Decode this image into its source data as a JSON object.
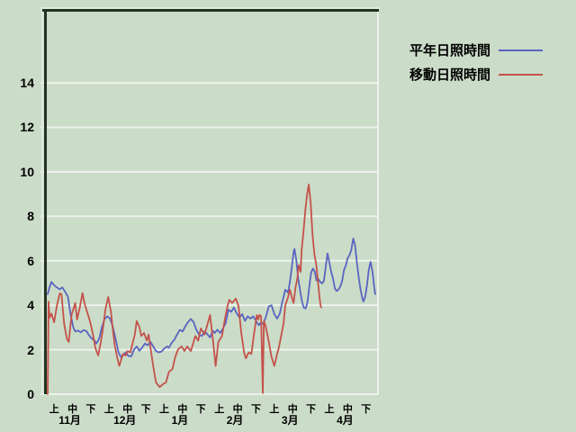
{
  "colors": {
    "background": "#cbdcc8",
    "grid": "#edf3ec",
    "border_dark": "#233323",
    "border_light": "#dfeadc",
    "text": "#000000"
  },
  "legend": {
    "items": [
      {
        "label": "平年日照時間",
        "color": "#5a64c1"
      },
      {
        "label": "移動日照時間",
        "color": "#c4524a"
      }
    ]
  },
  "chart_data": {
    "type": "line",
    "title": "",
    "xlabel": "",
    "ylabel": "",
    "grid": true,
    "legend_position": "outside-top-right",
    "x_axis": {
      "months": [
        "11月",
        "12月",
        "1月",
        "2月",
        "3月",
        "4月"
      ],
      "period_labels": [
        "上",
        "中",
        "下"
      ],
      "days_total": 180
    },
    "y_axis": {
      "ticks": [
        0,
        2,
        4,
        6,
        8,
        10,
        12,
        14
      ],
      "range_drawn": [
        0,
        17.2
      ]
    },
    "series": [
      {
        "name": "平年日照時間",
        "color": "#5a64c1",
        "points": [
          [
            0,
            4.5
          ],
          [
            1,
            4.8
          ],
          [
            2,
            5.05
          ],
          [
            3.5,
            4.9
          ],
          [
            5,
            4.8
          ],
          [
            6.5,
            4.72
          ],
          [
            8,
            4.8
          ],
          [
            9.5,
            4.6
          ],
          [
            11,
            4.4
          ],
          [
            12.5,
            3.56
          ],
          [
            14,
            3.0
          ],
          [
            15,
            2.82
          ],
          [
            16.5,
            2.86
          ],
          [
            18,
            2.78
          ],
          [
            19.5,
            2.88
          ],
          [
            21,
            2.85
          ],
          [
            22.5,
            2.65
          ],
          [
            24,
            2.5
          ],
          [
            25.5,
            2.42
          ],
          [
            26.5,
            2.28
          ],
          [
            28,
            2.48
          ],
          [
            29.5,
            3.0
          ],
          [
            31,
            3.38
          ],
          [
            32.5,
            3.5
          ],
          [
            34,
            3.4
          ],
          [
            35.5,
            3.02
          ],
          [
            37,
            2.5
          ],
          [
            38.5,
            1.9
          ],
          [
            40,
            1.65
          ],
          [
            41,
            1.74
          ],
          [
            42.5,
            1.88
          ],
          [
            44,
            1.72
          ],
          [
            45.5,
            1.7
          ],
          [
            47,
            2.0
          ],
          [
            48.5,
            2.15
          ],
          [
            50,
            1.95
          ],
          [
            51.5,
            2.1
          ],
          [
            53,
            2.28
          ],
          [
            54.5,
            2.2
          ],
          [
            56,
            2.35
          ],
          [
            57.5,
            2.15
          ],
          [
            59,
            1.94
          ],
          [
            60.5,
            1.88
          ],
          [
            62,
            1.92
          ],
          [
            63.5,
            2.05
          ],
          [
            65,
            2.15
          ],
          [
            66,
            2.08
          ],
          [
            67.5,
            2.3
          ],
          [
            69,
            2.45
          ],
          [
            70.5,
            2.68
          ],
          [
            72,
            2.89
          ],
          [
            73.5,
            2.82
          ],
          [
            75,
            3.05
          ],
          [
            76.5,
            3.25
          ],
          [
            78,
            3.38
          ],
          [
            79.5,
            3.25
          ],
          [
            81,
            2.9
          ],
          [
            82.5,
            2.68
          ],
          [
            84,
            2.62
          ],
          [
            85.5,
            2.82
          ],
          [
            87,
            2.7
          ],
          [
            88.5,
            2.55
          ],
          [
            90,
            2.85
          ],
          [
            91,
            2.75
          ],
          [
            92.5,
            2.9
          ],
          [
            94,
            2.75
          ],
          [
            95.5,
            2.95
          ],
          [
            97,
            3.2
          ],
          [
            98.5,
            3.8
          ],
          [
            100,
            3.7
          ],
          [
            101.5,
            3.9
          ],
          [
            103,
            3.63
          ],
          [
            104.5,
            3.45
          ],
          [
            106,
            3.6
          ],
          [
            107.5,
            3.3
          ],
          [
            109,
            3.5
          ],
          [
            110.5,
            3.4
          ],
          [
            112,
            3.5
          ],
          [
            113.5,
            3.3
          ],
          [
            115,
            3.1
          ],
          [
            116,
            3.2
          ],
          [
            117.5,
            3.16
          ],
          [
            119,
            3.5
          ],
          [
            120.5,
            3.95
          ],
          [
            122,
            4.0
          ],
          [
            123.5,
            3.6
          ],
          [
            125,
            3.4
          ],
          [
            126.5,
            3.63
          ],
          [
            128,
            4.2
          ],
          [
            129.5,
            4.7
          ],
          [
            131,
            4.57
          ],
          [
            132,
            5.05
          ],
          [
            133,
            5.7
          ],
          [
            134,
            6.4
          ],
          [
            134.5,
            6.53
          ],
          [
            135.5,
            6.0
          ],
          [
            136.5,
            5.2
          ],
          [
            137.5,
            4.7
          ],
          [
            138.5,
            4.2
          ],
          [
            139.5,
            3.9
          ],
          [
            140.5,
            3.85
          ],
          [
            141.5,
            4.1
          ],
          [
            142.5,
            4.78
          ],
          [
            143.5,
            5.45
          ],
          [
            144.5,
            5.65
          ],
          [
            145.5,
            5.52
          ],
          [
            146.5,
            5.11
          ],
          [
            147.5,
            5.18
          ],
          [
            148.5,
            5.05
          ],
          [
            149.5,
            4.98
          ],
          [
            150.5,
            5.1
          ],
          [
            151.5,
            5.72
          ],
          [
            152.5,
            6.33
          ],
          [
            153.5,
            5.92
          ],
          [
            154.5,
            5.5
          ],
          [
            155.5,
            5.2
          ],
          [
            156.5,
            4.75
          ],
          [
            157.5,
            4.64
          ],
          [
            158.5,
            4.71
          ],
          [
            159.5,
            4.85
          ],
          [
            160.5,
            5.1
          ],
          [
            161.5,
            5.6
          ],
          [
            162.5,
            5.79
          ],
          [
            163.5,
            6.13
          ],
          [
            164.5,
            6.26
          ],
          [
            165.5,
            6.5
          ],
          [
            166.5,
            7.0
          ],
          [
            167.5,
            6.7
          ],
          [
            168.5,
            5.9
          ],
          [
            169.5,
            5.25
          ],
          [
            170.5,
            4.71
          ],
          [
            171.5,
            4.3
          ],
          [
            172,
            4.17
          ],
          [
            173,
            4.37
          ],
          [
            174,
            4.91
          ],
          [
            175,
            5.6
          ],
          [
            176,
            5.95
          ],
          [
            177,
            5.5
          ],
          [
            178,
            4.78
          ],
          [
            178.5,
            4.5
          ]
        ]
      },
      {
        "name": "移動日照時間",
        "color": "#c4524a",
        "points": [
          [
            0,
            0.0
          ],
          [
            0.5,
            4.17
          ],
          [
            1,
            3.43
          ],
          [
            2,
            3.63
          ],
          [
            3.5,
            3.23
          ],
          [
            5,
            3.97
          ],
          [
            6.5,
            4.53
          ],
          [
            7.5,
            4.5
          ],
          [
            9,
            3.16
          ],
          [
            10.5,
            2.48
          ],
          [
            11.5,
            2.35
          ],
          [
            13,
            3.56
          ],
          [
            15,
            4.1
          ],
          [
            16,
            3.36
          ],
          [
            17.5,
            3.9
          ],
          [
            19,
            4.55
          ],
          [
            20,
            4.1
          ],
          [
            21.5,
            3.7
          ],
          [
            23,
            3.29
          ],
          [
            24.5,
            2.75
          ],
          [
            26,
            2.08
          ],
          [
            27.5,
            1.74
          ],
          [
            29,
            2.35
          ],
          [
            30,
            2.89
          ],
          [
            31.5,
            3.83
          ],
          [
            33,
            4.37
          ],
          [
            34.5,
            3.7
          ],
          [
            35.5,
            2.89
          ],
          [
            36.5,
            2.21
          ],
          [
            38,
            1.61
          ],
          [
            39,
            1.27
          ],
          [
            40,
            1.54
          ],
          [
            41,
            1.81
          ],
          [
            42.5,
            1.74
          ],
          [
            43.5,
            1.94
          ],
          [
            45,
            1.88
          ],
          [
            46,
            2.21
          ],
          [
            47.5,
            2.68
          ],
          [
            48.5,
            3.29
          ],
          [
            50,
            3.02
          ],
          [
            51,
            2.62
          ],
          [
            52.5,
            2.75
          ],
          [
            54,
            2.41
          ],
          [
            55,
            2.68
          ],
          [
            57.5,
            1.27
          ],
          [
            59,
            0.53
          ],
          [
            61,
            0.32
          ],
          [
            63,
            0.46
          ],
          [
            64.5,
            0.53
          ],
          [
            66,
            1.0
          ],
          [
            68,
            1.13
          ],
          [
            69.5,
            1.67
          ],
          [
            71,
            2.01
          ],
          [
            73,
            2.15
          ],
          [
            74.5,
            1.94
          ],
          [
            76,
            2.15
          ],
          [
            78,
            1.94
          ],
          [
            80.5,
            2.62
          ],
          [
            82,
            2.41
          ],
          [
            83.5,
            2.96
          ],
          [
            85.5,
            2.68
          ],
          [
            87,
            3.12
          ],
          [
            88.5,
            3.56
          ],
          [
            90,
            2.48
          ],
          [
            91.5,
            1.27
          ],
          [
            93,
            2.35
          ],
          [
            95,
            2.62
          ],
          [
            96.5,
            3.36
          ],
          [
            98,
            3.97
          ],
          [
            99,
            4.24
          ],
          [
            100.5,
            4.1
          ],
          [
            102.5,
            4.3
          ],
          [
            104,
            3.97
          ],
          [
            105.5,
            2.75
          ],
          [
            107,
            1.88
          ],
          [
            108,
            1.61
          ],
          [
            109.5,
            1.88
          ],
          [
            111,
            1.81
          ],
          [
            112.5,
            2.75
          ],
          [
            114,
            3.56
          ],
          [
            114.7,
            3.36
          ],
          [
            115.4,
            3.56
          ],
          [
            116.3,
            3.5
          ],
          [
            117.2,
            0.05
          ],
          [
            117.8,
            3.29
          ],
          [
            118.7,
            3.09
          ],
          [
            120.2,
            2.48
          ],
          [
            122,
            1.67
          ],
          [
            123.5,
            1.27
          ],
          [
            125,
            1.81
          ],
          [
            126,
            2.1
          ],
          [
            127.5,
            2.75
          ],
          [
            128.5,
            3.16
          ],
          [
            129.5,
            4.0
          ],
          [
            131,
            4.37
          ],
          [
            132,
            4.7
          ],
          [
            133,
            4.37
          ],
          [
            134,
            4.1
          ],
          [
            135,
            4.78
          ],
          [
            136,
            5.2
          ],
          [
            136.8,
            5.8
          ],
          [
            137.8,
            5.5
          ],
          [
            138.4,
            6.5
          ],
          [
            139.4,
            7.3
          ],
          [
            140.4,
            8.3
          ],
          [
            141.4,
            9.0
          ],
          [
            142.3,
            9.43
          ],
          [
            143.3,
            8.6
          ],
          [
            144.3,
            7.2
          ],
          [
            145.3,
            6.3
          ],
          [
            146.3,
            5.86
          ],
          [
            147.3,
            5.05
          ],
          [
            148.2,
            4.3
          ],
          [
            148.7,
            3.97
          ],
          [
            149.2,
            3.9
          ]
        ]
      }
    ]
  }
}
